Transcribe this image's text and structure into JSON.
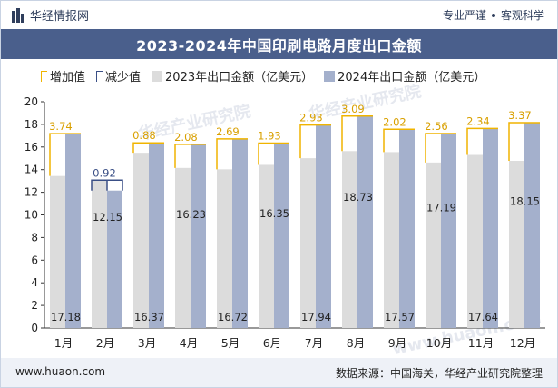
{
  "header": {
    "brand": "华经情报网",
    "slogan_left": "专业严谨",
    "slogan_right": "客观科学",
    "title": "2023-2024年中国印刷电路月度出口金额"
  },
  "legend": {
    "increase": "增加值",
    "decrease": "减少值",
    "series_2023": "2023年出口金额（亿美元）",
    "series_2024": "2024年出口金额（亿美元）"
  },
  "footer": {
    "website": "www.huaon.com",
    "source": "数据来源：中国海关，华经产业研究院整理"
  },
  "watermarks": [
    "华经产业研究院",
    "华经产业研究院",
    "www.huaon.com"
  ],
  "colors": {
    "bar_2023": "#dcdcdc",
    "bar_2024": "#a4b0cc",
    "increase_outline": "#f0b400",
    "decrease_outline": "#3a4f86",
    "title_bg": "#4a5f8c"
  },
  "chart_data": {
    "type": "bar",
    "categories": [
      "1月",
      "2月",
      "3月",
      "4月",
      "5月",
      "6月",
      "7月",
      "8月",
      "9月",
      "10月",
      "11月",
      "12月"
    ],
    "series": [
      {
        "name": "2023年出口金额（亿美元）",
        "values": [
          13.44,
          13.07,
          15.49,
          14.15,
          14.03,
          14.42,
          15.01,
          15.64,
          15.55,
          14.63,
          15.3,
          14.78
        ]
      },
      {
        "name": "2024年出口金额（亿美元）",
        "values": [
          17.18,
          12.15,
          16.37,
          16.23,
          16.72,
          16.35,
          17.94,
          18.73,
          17.57,
          17.19,
          17.64,
          18.15
        ]
      }
    ],
    "change": {
      "name_increase": "增加值",
      "name_decrease": "减少值",
      "values": [
        3.74,
        -0.92,
        0.88,
        2.08,
        2.69,
        1.93,
        2.93,
        3.09,
        2.02,
        2.56,
        2.34,
        3.37
      ],
      "labels": [
        "3.74",
        "-0.92",
        "0.88",
        "2.08",
        "2.69",
        "1.93",
        "2.93",
        "3.09",
        "2.02",
        "2.56",
        "2.34",
        "3.37"
      ]
    },
    "value_labels_2024": [
      "17.18",
      "12.15",
      "16.37",
      "16.23",
      "16.72",
      "16.35",
      "17.94",
      "18.73",
      "17.57",
      "17.19",
      "17.64",
      "18.15"
    ],
    "y_ticks": [
      "0",
      "2",
      "4",
      "6",
      "8",
      "10",
      "12",
      "14",
      "16",
      "18",
      "20"
    ],
    "ylim": [
      0,
      20
    ],
    "title": "2023-2024年中国印刷电路月度出口金额",
    "xlabel": "",
    "ylabel": "",
    "grid": false,
    "legend_position": "top"
  }
}
